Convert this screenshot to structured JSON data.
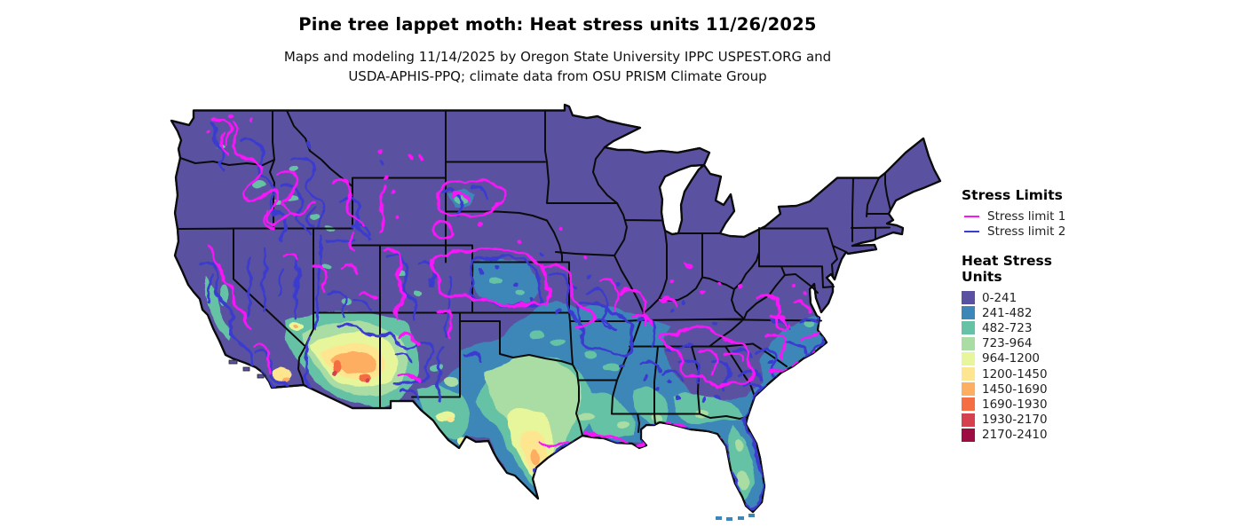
{
  "header": {
    "title": "Pine tree lappet moth: Heat stress units 11/26/2025",
    "subtitle_line1": "Maps and modeling 11/14/2025 by Oregon State University IPPC USPEST.ORG and",
    "subtitle_line2": "USDA-APHIS-PPQ; climate data from OSU PRISM Climate Group"
  },
  "map": {
    "region": "Continental United States",
    "background_color": "#ffffff",
    "state_border_color": "#0b0b0b",
    "water_color": "#ffffff"
  },
  "legend": {
    "stress_limits": {
      "heading": "Stress Limits",
      "items": [
        {
          "label": "Stress limit 1",
          "color": "#f715f7"
        },
        {
          "label": "Stress limit 2",
          "color": "#3b3bd0"
        }
      ]
    },
    "heat_stress": {
      "heading_line1": "Heat Stress",
      "heading_line2": "Units",
      "bins": [
        {
          "label": "0-241",
          "color": "#5a52a0"
        },
        {
          "label": "241-482",
          "color": "#3d87b8"
        },
        {
          "label": "482-723",
          "color": "#66c2a5"
        },
        {
          "label": "723-964",
          "color": "#aadda4"
        },
        {
          "label": "964-1200",
          "color": "#e8f69b"
        },
        {
          "label": "1200-1450",
          "color": "#fee590"
        },
        {
          "label": "1450-1690",
          "color": "#fdae61"
        },
        {
          "label": "1690-1930",
          "color": "#f46d43"
        },
        {
          "label": "1930-2170",
          "color": "#d4404e"
        },
        {
          "label": "2170-2410",
          "color": "#9e0d42"
        }
      ]
    }
  }
}
